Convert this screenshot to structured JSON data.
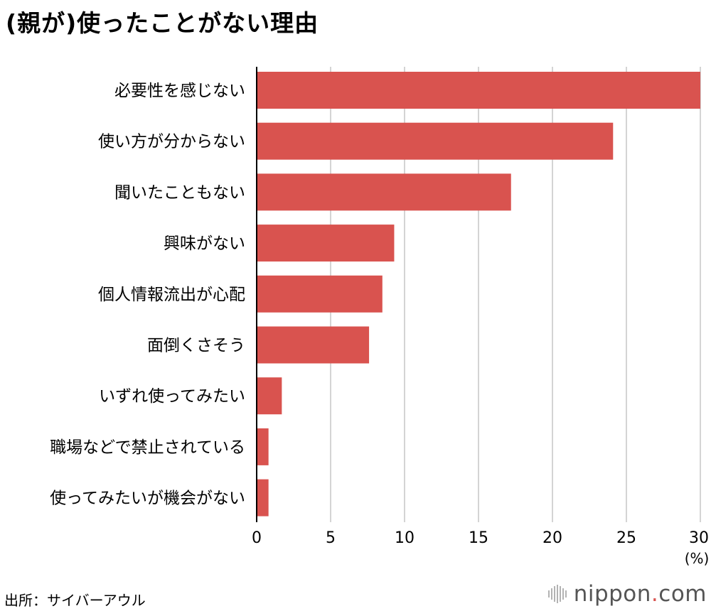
{
  "title": "(親が)使ったことがない理由",
  "source": "出所：サイバーアウル",
  "brand": {
    "name": "nippon",
    "dot": ".",
    "suffix": "com"
  },
  "colors": {
    "bar": "#d9534f",
    "grid": "#d4d4d4",
    "axis": "#000000"
  },
  "chart_data": {
    "type": "bar",
    "orientation": "horizontal",
    "categories": [
      "必要性を感じない",
      "使い方が分からない",
      "聞いたこともない",
      "興味がない",
      "個人情報流出が心配",
      "面倒くさそう",
      "いずれ使ってみたい",
      "職場などで禁止されている",
      "使ってみたいが機会がない"
    ],
    "values": [
      30.0,
      24.1,
      17.2,
      9.3,
      8.5,
      7.6,
      1.7,
      0.8,
      0.8
    ],
    "xlim": [
      0,
      30
    ],
    "xticks": [
      0,
      5,
      10,
      15,
      20,
      25,
      30
    ],
    "unit": "(%)",
    "grid": true,
    "legend": "none"
  }
}
